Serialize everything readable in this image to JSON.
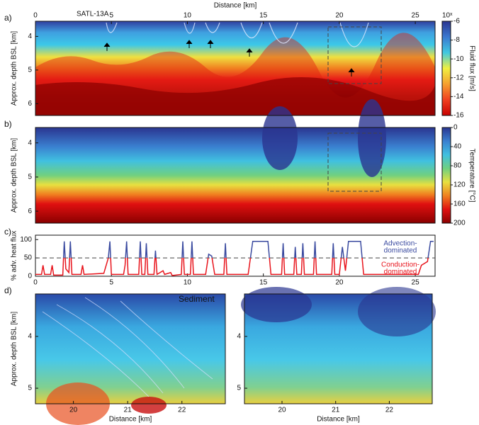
{
  "chart_data": [
    {
      "type": "heatmap",
      "panel_label": "a)",
      "xlabel": "Distance [km]",
      "ylabel": "Approx. depth BSL [km]",
      "annotation": "SATL-13A",
      "xlim": [
        0,
        26.3
      ],
      "xticks": [
        0,
        5,
        10,
        15,
        20,
        25
      ],
      "ylim": [
        6.35,
        3.55
      ],
      "yticks": [
        4,
        5,
        6
      ],
      "colorbar": {
        "label": "Fluid flux [m/s]",
        "exponent_label": "10ˣ",
        "lim": [
          -16,
          -6
        ],
        "ticks": [
          -16,
          -14,
          -12,
          -10,
          -8,
          -6
        ],
        "colors": [
          "#c80000",
          "#f04020",
          "#f5a030",
          "#f0f040",
          "#40c8e0",
          "#3a78d0",
          "#2a3590"
        ]
      }
    },
    {
      "type": "heatmap",
      "panel_label": "b)",
      "ylabel": "Approx. depth BSL [km]",
      "xlim": [
        0,
        26.3
      ],
      "ylim": [
        6.35,
        3.55
      ],
      "yticks": [
        4,
        5,
        6
      ],
      "colorbar": {
        "label": "Temperature [°C]",
        "lim": [
          200,
          0
        ],
        "ticks": [
          0,
          40,
          80,
          120,
          160,
          200
        ],
        "colors": [
          "#8a0000",
          "#e01010",
          "#f08020",
          "#e8e040",
          "#70d080",
          "#40c0e0",
          "#3a80d0",
          "#2a3590"
        ]
      }
    },
    {
      "type": "line",
      "panel_label": "c)",
      "ylabel": "% adv. heat flux",
      "annotation_above": [
        "Advection-",
        "dominated"
      ],
      "annotation_below": [
        "Conduction-",
        "dominated"
      ],
      "xlim": [
        0,
        26.3
      ],
      "xticks": [
        0,
        5,
        10,
        15,
        20,
        25
      ],
      "ylim": [
        0,
        112
      ],
      "yticks": [
        0,
        50,
        100
      ],
      "hline": 50,
      "colors": [
        "#e8141c",
        "#3b4ba0"
      ],
      "x": [
        0,
        0.4,
        0.5,
        0.6,
        1.0,
        1.1,
        1.2,
        1.8,
        1.9,
        2.0,
        2.2,
        2.3,
        2.4,
        3.0,
        3.1,
        3.2,
        4.5,
        4.8,
        4.9,
        5.0,
        5.8,
        5.9,
        6.0,
        6.1,
        6.8,
        6.9,
        7.0,
        7.2,
        7.3,
        7.4,
        7.8,
        7.9,
        8.0,
        8.4,
        8.5,
        8.9,
        9.0,
        9.6,
        9.7,
        9.8,
        10.2,
        10.3,
        10.4,
        11.2,
        11.4,
        11.6,
        11.8,
        12.4,
        12.5,
        12.6,
        14.0,
        14.3,
        15.3,
        15.5,
        16.2,
        16.3,
        16.4,
        17.0,
        17.1,
        17.2,
        17.5,
        17.6,
        17.7,
        18.3,
        18.4,
        18.5,
        19.5,
        19.6,
        19.7,
        20.0,
        20.2,
        20.4,
        20.6,
        21.4,
        21.6,
        25.2,
        25.4,
        25.8,
        26.0,
        26.2
      ],
      "values": [
        5,
        5,
        30,
        5,
        5,
        30,
        3,
        3,
        95,
        20,
        10,
        95,
        5,
        5,
        30,
        5,
        8,
        50,
        95,
        5,
        5,
        30,
        95,
        5,
        5,
        95,
        5,
        5,
        90,
        5,
        5,
        70,
        5,
        15,
        5,
        10,
        2,
        5,
        95,
        5,
        5,
        95,
        5,
        5,
        60,
        55,
        5,
        5,
        90,
        5,
        5,
        95,
        95,
        5,
        5,
        90,
        5,
        5,
        80,
        5,
        5,
        90,
        5,
        5,
        95,
        5,
        5,
        90,
        5,
        5,
        80,
        15,
        95,
        95,
        5,
        5,
        30,
        40,
        95,
        95
      ]
    },
    {
      "type": "heatmap",
      "panel_label": "d)",
      "xlabel": "Distance [km]",
      "ylabel": "Approx. depth BSL [km]",
      "annotation": "Sediment",
      "xlim": [
        19.3,
        22.8
      ],
      "xticks": [
        20,
        21,
        22
      ],
      "ylim": [
        5.3,
        3.18
      ],
      "yticks": [
        4,
        5
      ]
    },
    {
      "type": "heatmap",
      "xlabel": "Distance [km]",
      "xlim": [
        19.3,
        22.8
      ],
      "xticks": [
        20,
        21,
        22
      ],
      "ylim": [
        5.3,
        3.18
      ],
      "yticks": [
        4,
        5
      ]
    }
  ]
}
